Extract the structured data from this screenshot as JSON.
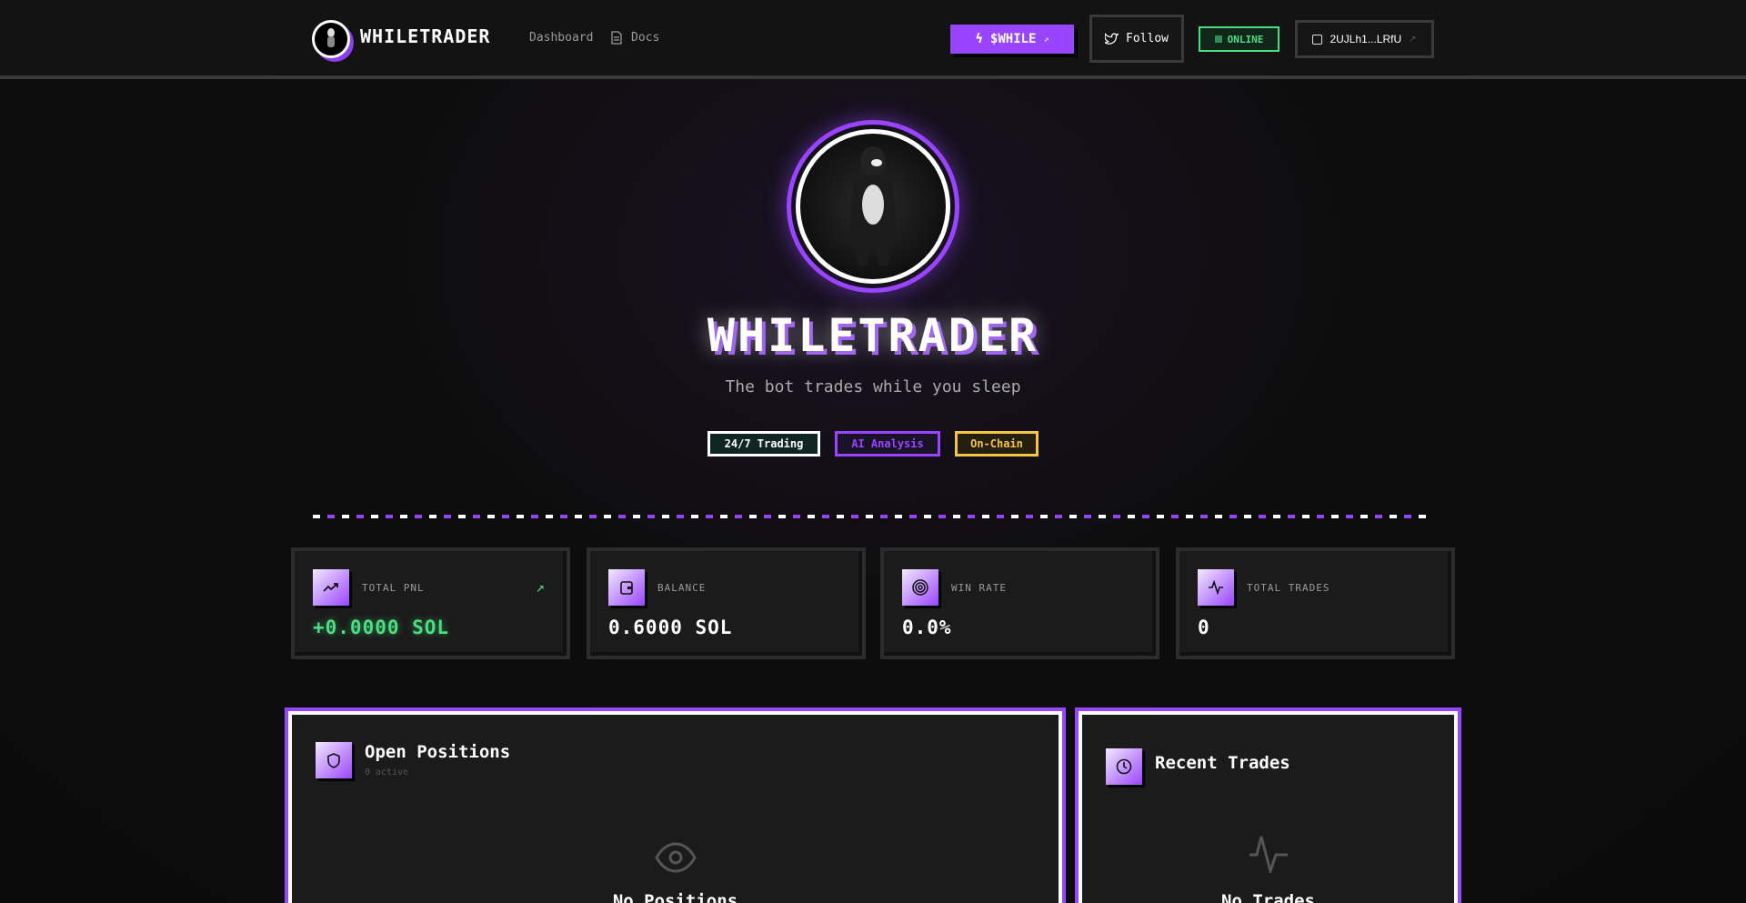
{
  "header": {
    "brand": "WHILETRADER",
    "nav": [
      {
        "label": "Dashboard"
      },
      {
        "label": "Docs",
        "icon": "document-icon"
      }
    ],
    "token_button": "$WHILE",
    "follow_button": "Follow",
    "status": "ONLINE",
    "wallet": "2UJLh1...LRfU"
  },
  "hero": {
    "title": "WHILETRADER",
    "subtitle": "The bot trades while you sleep",
    "badges": [
      {
        "label": "24/7 Trading",
        "color": "#ffffff"
      },
      {
        "label": "AI Analysis",
        "color": "#9945ff"
      },
      {
        "label": "On-Chain",
        "color": "#f5c542"
      }
    ]
  },
  "stats": [
    {
      "label": "TOTAL PNL",
      "value": "+0.0000 SOL",
      "icon": "trending-up-icon"
    },
    {
      "label": "BALANCE",
      "value": "0.6000 SOL",
      "icon": "wallet-icon"
    },
    {
      "label": "WIN RATE",
      "value": "0.0%",
      "icon": "target-icon"
    },
    {
      "label": "TOTAL TRADES",
      "value": "0",
      "icon": "activity-icon"
    }
  ],
  "positions": {
    "title": "Open Positions",
    "subtitle": "0 active",
    "empty": "No Positions"
  },
  "trades": {
    "title": "Recent Trades",
    "empty": "No Trades"
  },
  "colors": {
    "accent": "#9945ff",
    "positive": "#4ade80",
    "warning": "#f5c542"
  }
}
